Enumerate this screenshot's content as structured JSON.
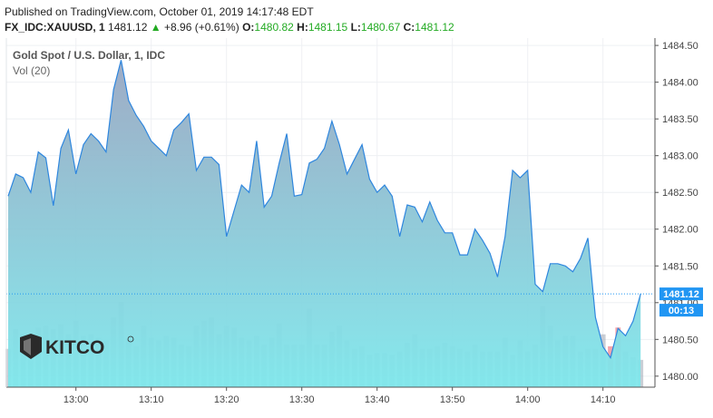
{
  "header": {
    "published": "Published on TradingView.com, October 01, 2019 14:17:48 EDT",
    "symbol": "FX_IDC:XAUUSD, 1",
    "last": "1481.12",
    "change": "+8.96 (+0.61%)",
    "o_label": "O:",
    "o": "1480.82",
    "h_label": "H:",
    "h": "1481.15",
    "l_label": "L:",
    "l": "1480.67",
    "c_label": "C:",
    "c": "1481.12"
  },
  "overlay": {
    "title": "Gold Spot / U.S. Dollar, 1, IDC",
    "vol": "Vol (20)"
  },
  "price_tag": {
    "price": "1481.12",
    "countdown": "00:13"
  },
  "logo_text": "KITCO",
  "colors": {
    "line": "#2e86de",
    "area_top": "#9aa7c2",
    "area_bottom": "#7fe8ec",
    "vol_bar": "#9fa6b3",
    "vol_bar_red": "#f4a0a8",
    "tag_bg": "#2196f3",
    "axis_text": "#444444",
    "grid": "#eef0f3"
  },
  "chart_data": {
    "type": "area",
    "title": "Gold Spot / U.S. Dollar, 1, IDC",
    "x_ticks": [
      "13:00",
      "13:10",
      "13:20",
      "13:30",
      "13:40",
      "13:50",
      "14:00",
      "14:10"
    ],
    "y_ticks": [
      "1480.00",
      "1480.50",
      "1481.00",
      "1481.50",
      "1482.00",
      "1482.50",
      "1483.00",
      "1483.50",
      "1484.00",
      "1484.50"
    ],
    "ylim": [
      1479.85,
      1484.6
    ],
    "start_time": "12:51",
    "x_minutes_per_point": 1,
    "series": [
      {
        "values": [
          1482.45,
          1482.75,
          1482.7,
          1482.5,
          1483.05,
          1482.97,
          1482.32,
          1483.1,
          1483.35,
          1482.75,
          1483.15,
          1483.3,
          1483.2,
          1483.05,
          1483.9,
          1484.3,
          1483.75,
          1483.55,
          1483.4,
          1483.2,
          1483.1,
          1483.0,
          1483.35,
          1483.45,
          1483.57,
          1482.8,
          1482.98,
          1482.98,
          1482.88,
          1481.9,
          1482.25,
          1482.6,
          1482.5,
          1483.2,
          1482.3,
          1482.45,
          1482.9,
          1483.3,
          1482.45,
          1482.47,
          1482.9,
          1482.95,
          1483.1,
          1483.47,
          1483.15,
          1482.75,
          1482.95,
          1483.15,
          1482.68,
          1482.5,
          1482.6,
          1482.45,
          1481.9,
          1482.33,
          1482.3,
          1482.1,
          1482.37,
          1482.12,
          1481.95,
          1481.95,
          1481.65,
          1481.65,
          1482.0,
          1481.85,
          1481.67,
          1481.35,
          1481.9,
          1482.8,
          1482.7,
          1482.8,
          1481.25,
          1481.15,
          1481.53,
          1481.53,
          1481.5,
          1481.42,
          1481.6,
          1481.88,
          1480.8,
          1480.4,
          1480.25,
          1480.65,
          1480.55,
          1480.75,
          1481.12
        ],
        "volume": [
          0.45,
          0.68,
          0.62,
          0.58,
          0.7,
          0.72,
          0.68,
          0.74,
          0.62,
          0.78,
          0.6,
          0.62,
          0.58,
          0.55,
          0.82,
          1.0,
          0.55,
          0.48,
          0.72,
          0.58,
          0.55,
          0.6,
          0.58,
          0.5,
          0.48,
          0.72,
          0.78,
          0.82,
          0.62,
          0.72,
          0.7,
          0.58,
          0.55,
          0.6,
          0.5,
          0.58,
          0.75,
          0.5,
          0.5,
          0.5,
          0.92,
          0.5,
          0.5,
          0.65,
          0.72,
          0.55,
          0.45,
          0.48,
          0.38,
          0.4,
          0.4,
          0.38,
          0.42,
          0.52,
          0.62,
          0.45,
          0.45,
          0.48,
          0.52,
          0.48,
          0.45,
          0.42,
          0.5,
          0.42,
          0.42,
          0.42,
          0.58,
          0.38,
          0.55,
          0.42,
          0.5,
          0.95,
          0.72,
          0.55,
          0.6,
          0.6,
          0.42,
          0.45,
          0.45,
          0.62,
          0.48,
          0.7,
          0.42,
          0.35,
          0.32
        ]
      }
    ],
    "red_volume_bars": [
      80,
      81
    ],
    "current_price": 1481.12,
    "grid": true
  }
}
